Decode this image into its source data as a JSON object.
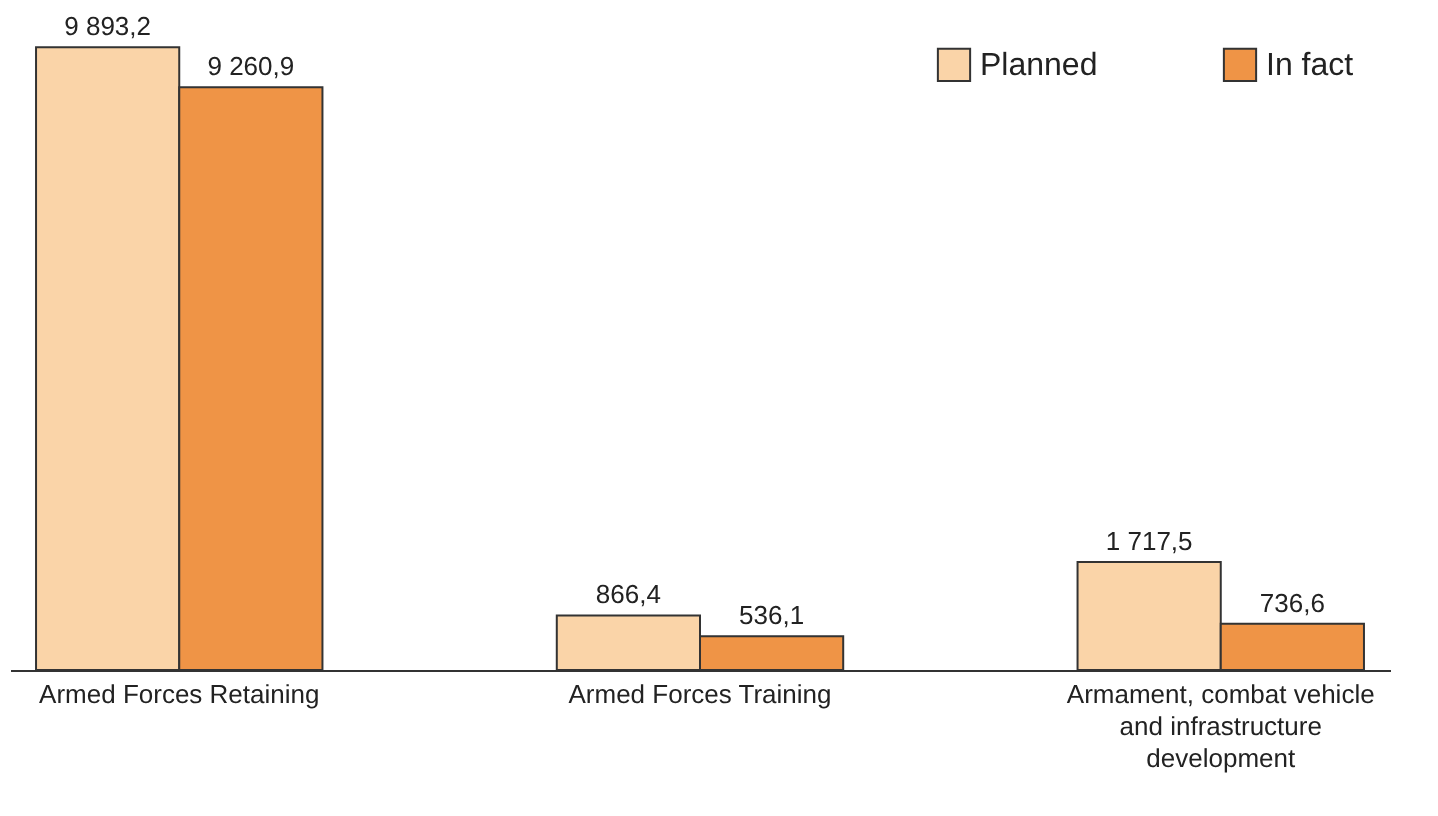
{
  "chart_data": {
    "type": "bar",
    "categories": [
      "Armed Forces Retaining",
      "Armed Forces Training",
      "Armament, combat vehicle and infrastructure development"
    ],
    "series": [
      {
        "name": "Planned",
        "color": "#fad4a8",
        "values": [
          9893.2,
          866.4,
          1717.5
        ],
        "value_labels": [
          "9 893,2",
          "866,4",
          "1 717,5"
        ]
      },
      {
        "name": "In fact",
        "color": "#ef9446",
        "values": [
          9260.9,
          536.1,
          736.6
        ],
        "value_labels": [
          "9 260,9",
          "536,1",
          "736,6"
        ]
      }
    ],
    "legend": "top right",
    "grid": false
  }
}
